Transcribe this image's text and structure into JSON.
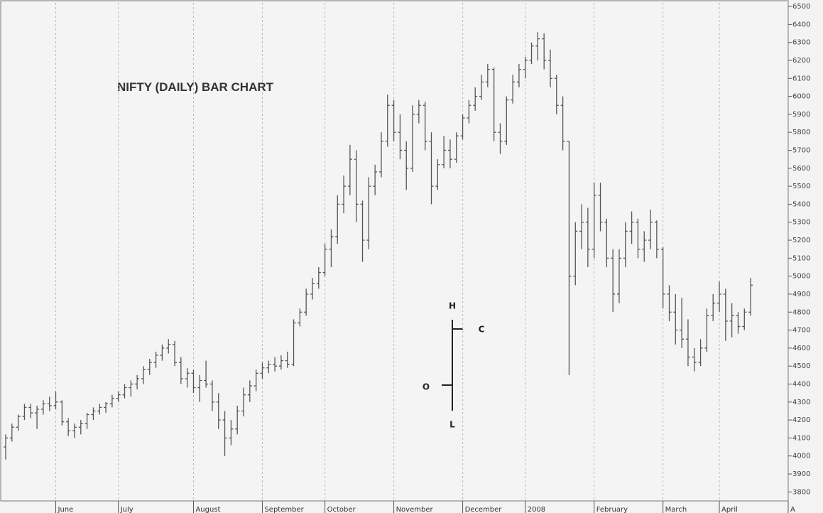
{
  "chart_data": {
    "type": "ohlc",
    "title": "NIFTY (DAILY) BAR CHART",
    "legend_key": {
      "high": "H",
      "close": "C",
      "open": "O",
      "low": "L"
    },
    "color": "#555555",
    "grid": true,
    "xlim": [
      0,
      125
    ],
    "xticks": [
      {
        "value": 8,
        "label": "June"
      },
      {
        "value": 18,
        "label": "July"
      },
      {
        "value": 30,
        "label": "August"
      },
      {
        "value": 41,
        "label": "September"
      },
      {
        "value": 51,
        "label": "October"
      },
      {
        "value": 62,
        "label": "November"
      },
      {
        "value": 73,
        "label": "December"
      },
      {
        "value": 83,
        "label": "2008"
      },
      {
        "value": 94,
        "label": "February"
      },
      {
        "value": 105,
        "label": "March"
      },
      {
        "value": 114,
        "label": "April"
      },
      {
        "value": 125,
        "label": "A"
      }
    ],
    "ylim": [
      3750,
      6520
    ],
    "yticks": [
      3800,
      3900,
      4000,
      4100,
      4200,
      4300,
      4400,
      4500,
      4600,
      4700,
      4800,
      4900,
      5000,
      5100,
      5200,
      5300,
      5400,
      5500,
      5600,
      5700,
      5800,
      5900,
      6000,
      6100,
      6200,
      6300,
      6400,
      6500
    ],
    "ohlc": [
      [
        4050,
        4120,
        3980,
        4100
      ],
      [
        4100,
        4180,
        4080,
        4160
      ],
      [
        4160,
        4230,
        4140,
        4220
      ],
      [
        4220,
        4290,
        4200,
        4270
      ],
      [
        4270,
        4290,
        4210,
        4240
      ],
      [
        4240,
        4280,
        4150,
        4260
      ],
      [
        4260,
        4310,
        4230,
        4290
      ],
      [
        4290,
        4330,
        4250,
        4280
      ],
      [
        4280,
        4360,
        4260,
        4300
      ],
      [
        4300,
        4310,
        4170,
        4190
      ],
      [
        4190,
        4210,
        4110,
        4140
      ],
      [
        4140,
        4180,
        4100,
        4160
      ],
      [
        4160,
        4200,
        4120,
        4180
      ],
      [
        4180,
        4240,
        4150,
        4230
      ],
      [
        4230,
        4270,
        4200,
        4250
      ],
      [
        4250,
        4290,
        4230,
        4270
      ],
      [
        4270,
        4300,
        4240,
        4290
      ],
      [
        4290,
        4340,
        4270,
        4320
      ],
      [
        4320,
        4360,
        4300,
        4340
      ],
      [
        4340,
        4400,
        4320,
        4380
      ],
      [
        4380,
        4420,
        4330,
        4400
      ],
      [
        4400,
        4450,
        4370,
        4430
      ],
      [
        4430,
        4500,
        4400,
        4480
      ],
      [
        4480,
        4540,
        4450,
        4520
      ],
      [
        4520,
        4580,
        4490,
        4560
      ],
      [
        4560,
        4620,
        4530,
        4600
      ],
      [
        4600,
        4650,
        4570,
        4620
      ],
      [
        4620,
        4640,
        4500,
        4520
      ],
      [
        4520,
        4550,
        4400,
        4430
      ],
      [
        4430,
        4490,
        4380,
        4460
      ],
      [
        4460,
        4480,
        4350,
        4380
      ],
      [
        4380,
        4450,
        4300,
        4420
      ],
      [
        4420,
        4530,
        4380,
        4400
      ],
      [
        4400,
        4420,
        4250,
        4300
      ],
      [
        4300,
        4350,
        4150,
        4200
      ],
      [
        4200,
        4250,
        4000,
        4100
      ],
      [
        4100,
        4200,
        4060,
        4150
      ],
      [
        4150,
        4280,
        4120,
        4250
      ],
      [
        4250,
        4380,
        4220,
        4340
      ],
      [
        4340,
        4420,
        4300,
        4390
      ],
      [
        4390,
        4480,
        4360,
        4460
      ],
      [
        4460,
        4520,
        4430,
        4490
      ],
      [
        4490,
        4530,
        4460,
        4510
      ],
      [
        4510,
        4550,
        4470,
        4500
      ],
      [
        4500,
        4560,
        4480,
        4530
      ],
      [
        4530,
        4580,
        4490,
        4510
      ],
      [
        4510,
        4760,
        4500,
        4740
      ],
      [
        4740,
        4820,
        4720,
        4800
      ],
      [
        4800,
        4930,
        4780,
        4900
      ],
      [
        4900,
        4990,
        4870,
        4960
      ],
      [
        4960,
        5050,
        4930,
        5020
      ],
      [
        5020,
        5180,
        5000,
        5150
      ],
      [
        5150,
        5260,
        5050,
        5220
      ],
      [
        5220,
        5450,
        5180,
        5400
      ],
      [
        5400,
        5560,
        5350,
        5500
      ],
      [
        5500,
        5730,
        5450,
        5650
      ],
      [
        5650,
        5700,
        5300,
        5400
      ],
      [
        5400,
        5420,
        5080,
        5200
      ],
      [
        5200,
        5550,
        5150,
        5500
      ],
      [
        5500,
        5620,
        5450,
        5580
      ],
      [
        5580,
        5800,
        5550,
        5750
      ],
      [
        5750,
        6010,
        5720,
        5950
      ],
      [
        5950,
        5980,
        5750,
        5800
      ],
      [
        5800,
        5900,
        5650,
        5700
      ],
      [
        5700,
        5750,
        5480,
        5600
      ],
      [
        5600,
        5950,
        5580,
        5900
      ],
      [
        5900,
        5980,
        5850,
        5950
      ],
      [
        5950,
        5970,
        5700,
        5750
      ],
      [
        5750,
        5800,
        5400,
        5500
      ],
      [
        5500,
        5650,
        5480,
        5620
      ],
      [
        5620,
        5780,
        5600,
        5700
      ],
      [
        5700,
        5760,
        5600,
        5650
      ],
      [
        5650,
        5800,
        5630,
        5780
      ],
      [
        5780,
        5900,
        5760,
        5880
      ],
      [
        5880,
        5980,
        5850,
        5950
      ],
      [
        5950,
        6050,
        5920,
        6000
      ],
      [
        6000,
        6120,
        5980,
        6080
      ],
      [
        6080,
        6180,
        6050,
        6150
      ],
      [
        6150,
        6160,
        5750,
        5800
      ],
      [
        5800,
        5850,
        5680,
        5750
      ],
      [
        5750,
        6000,
        5730,
        5980
      ],
      [
        5980,
        6120,
        5960,
        6080
      ],
      [
        6080,
        6180,
        6050,
        6150
      ],
      [
        6150,
        6220,
        6100,
        6200
      ],
      [
        6200,
        6300,
        6180,
        6280
      ],
      [
        6280,
        6357,
        6200,
        6320
      ],
      [
        6320,
        6350,
        6150,
        6200
      ],
      [
        6200,
        6260,
        6050,
        6100
      ],
      [
        6100,
        6120,
        5900,
        5950
      ],
      [
        5950,
        6000,
        5700,
        5750
      ],
      [
        5750,
        5750,
        4450,
        5000
      ],
      [
        5000,
        5300,
        4950,
        5250
      ],
      [
        5250,
        5400,
        5150,
        5300
      ],
      [
        5300,
        5380,
        5050,
        5150
      ],
      [
        5150,
        5520,
        5100,
        5450
      ],
      [
        5450,
        5520,
        5250,
        5300
      ],
      [
        5300,
        5320,
        5050,
        5100
      ],
      [
        5100,
        5150,
        4800,
        4900
      ],
      [
        4900,
        5150,
        4850,
        5100
      ],
      [
        5100,
        5300,
        5050,
        5250
      ],
      [
        5250,
        5360,
        5180,
        5300
      ],
      [
        5300,
        5320,
        5100,
        5150
      ],
      [
        5150,
        5250,
        5080,
        5200
      ],
      [
        5200,
        5370,
        5150,
        5300
      ],
      [
        5300,
        5310,
        5100,
        5150
      ],
      [
        5150,
        5160,
        4820,
        4900
      ],
      [
        4900,
        4950,
        4750,
        4800
      ],
      [
        4800,
        4900,
        4620,
        4700
      ],
      [
        4700,
        4880,
        4600,
        4650
      ],
      [
        4650,
        4760,
        4500,
        4550
      ],
      [
        4550,
        4600,
        4470,
        4520
      ],
      [
        4520,
        4650,
        4500,
        4600
      ],
      [
        4600,
        4820,
        4580,
        4780
      ],
      [
        4780,
        4900,
        4750,
        4850
      ],
      [
        4850,
        4970,
        4800,
        4900
      ],
      [
        4900,
        4930,
        4640,
        4750
      ],
      [
        4750,
        4850,
        4660,
        4780
      ],
      [
        4780,
        4800,
        4680,
        4720
      ],
      [
        4720,
        4820,
        4700,
        4800
      ],
      [
        4800,
        4990,
        4780,
        4950
      ]
    ]
  }
}
